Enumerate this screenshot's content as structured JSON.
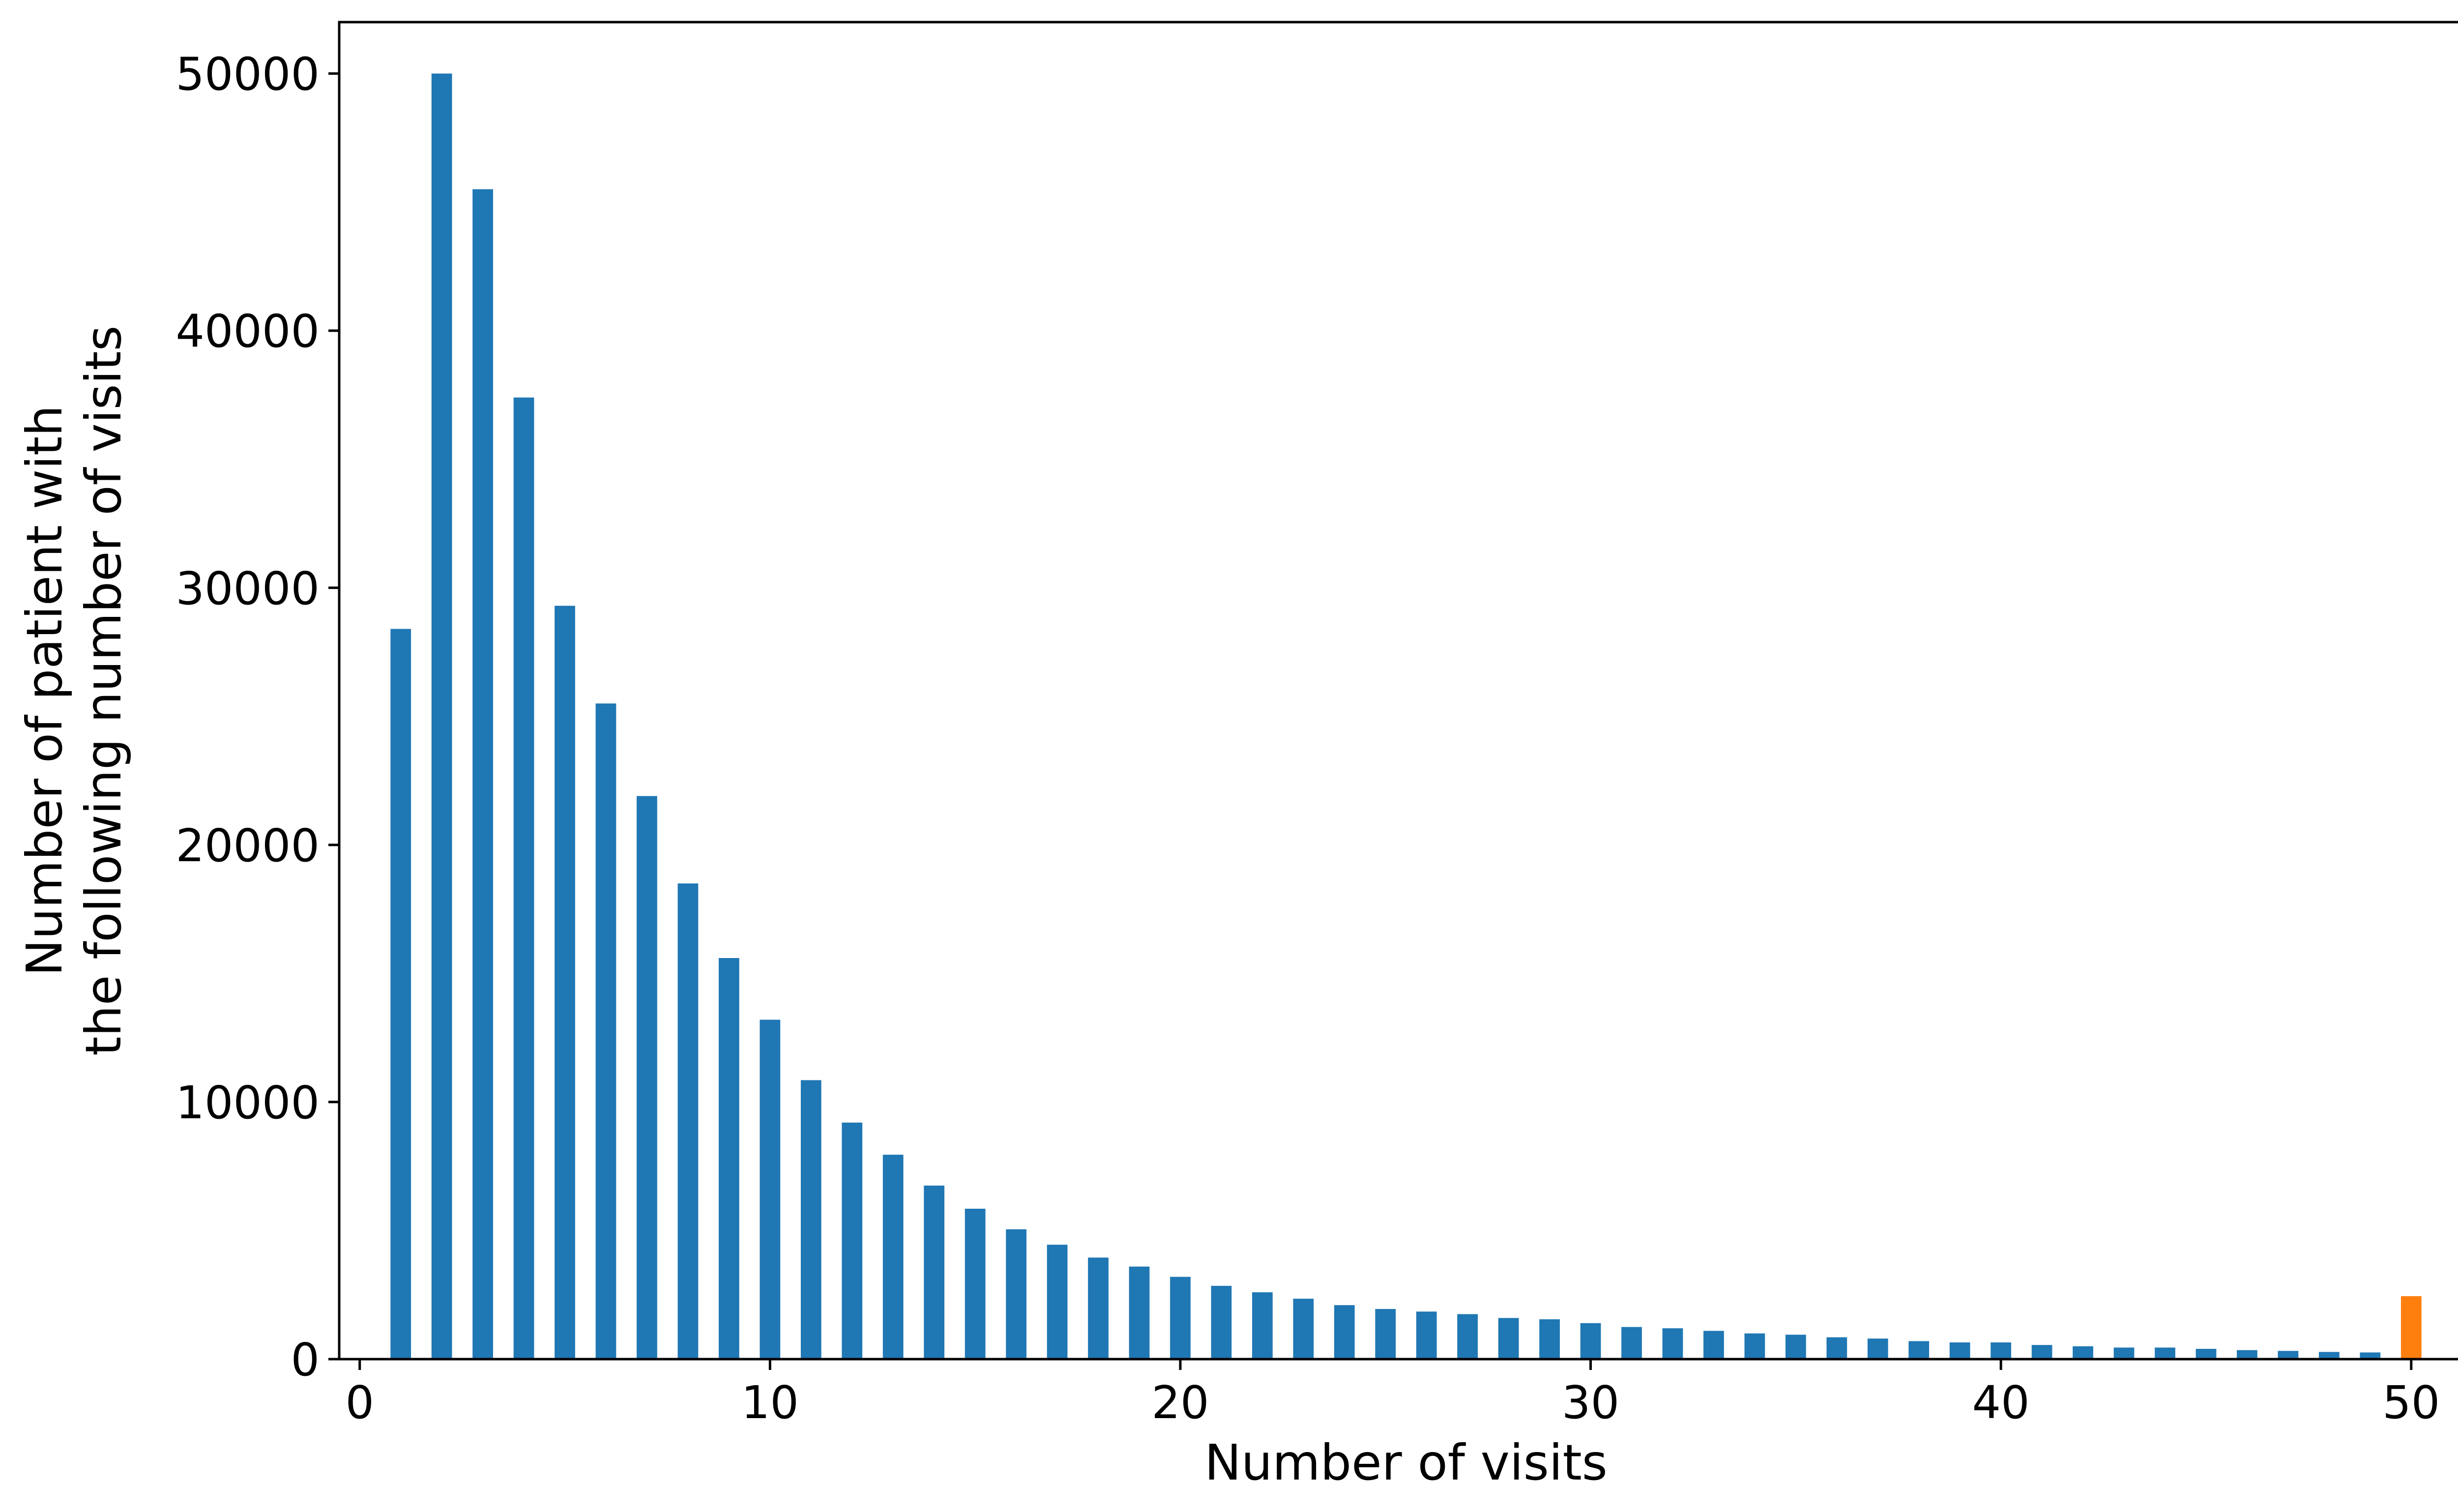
{
  "chart_data": {
    "type": "bar",
    "xlabel": "Number of visits",
    "ylabel_lines": [
      "Number of patient with",
      "the following number of visits"
    ],
    "xlim": [
      -0.5,
      51.5
    ],
    "ylim": [
      0,
      52000
    ],
    "xticks": [
      0,
      10,
      20,
      30,
      40,
      50
    ],
    "yticks": [
      0,
      10000,
      20000,
      30000,
      40000,
      50000
    ],
    "grid": false,
    "bar_width": 0.5,
    "colors": {
      "main": "#1f77b4",
      "highlight": "#ff7f0e"
    },
    "highlight_x": 50,
    "x": [
      1,
      2,
      3,
      4,
      5,
      6,
      7,
      8,
      9,
      10,
      11,
      12,
      13,
      14,
      15,
      16,
      17,
      18,
      19,
      20,
      21,
      22,
      23,
      24,
      25,
      26,
      27,
      28,
      29,
      30,
      31,
      32,
      33,
      34,
      35,
      36,
      37,
      38,
      39,
      40,
      41,
      42,
      43,
      44,
      45,
      46,
      47,
      48,
      49,
      50
    ],
    "values": [
      28400,
      50000,
      45500,
      37400,
      29300,
      25500,
      21900,
      18500,
      15600,
      13200,
      10850,
      9200,
      7950,
      6750,
      5850,
      5050,
      4450,
      3950,
      3600,
      3200,
      2850,
      2600,
      2350,
      2100,
      1950,
      1850,
      1750,
      1600,
      1550,
      1400,
      1250,
      1200,
      1100,
      1000,
      950,
      850,
      800,
      700,
      650,
      650,
      550,
      500,
      450,
      450,
      400,
      350,
      320,
      280,
      260,
      2450
    ]
  }
}
